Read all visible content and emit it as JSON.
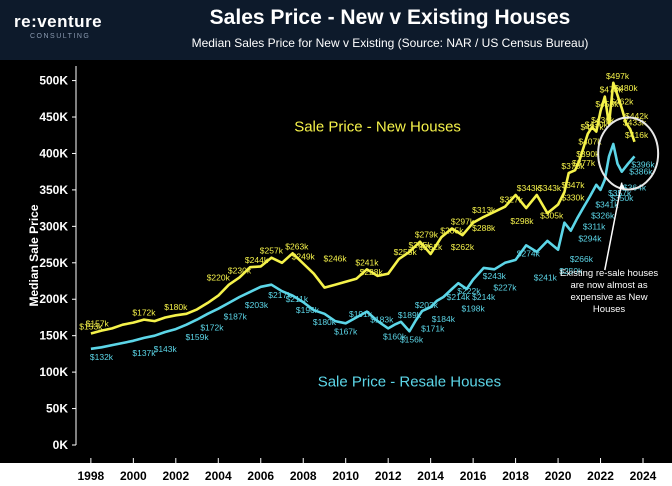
{
  "header": {
    "logo": "re:venture",
    "logo_sub": "CONSULTING",
    "title": "Sales Price - New v Existing Houses",
    "subtitle": "Median Sales Price for New v Existing (Source: NAR / US Census Bureau)"
  },
  "colors": {
    "background": "#000000",
    "header_bg": "#0d1a2b",
    "new_series": "#f5f24a",
    "resale_series": "#5cd6e8",
    "text": "#ffffff"
  },
  "chart_data": {
    "type": "line",
    "ylabel": "Median Sale Price",
    "xlim": [
      1997.3,
      2024.8
    ],
    "ylim": [
      0,
      520000
    ],
    "y_ticks": [
      {
        "value": 0,
        "label": "0K"
      },
      {
        "value": 50000,
        "label": "50K"
      },
      {
        "value": 100000,
        "label": "100K"
      },
      {
        "value": 150000,
        "label": "150K"
      },
      {
        "value": 200000,
        "label": "200K"
      },
      {
        "value": 250000,
        "label": "250K"
      },
      {
        "value": 300000,
        "label": "300K"
      },
      {
        "value": 350000,
        "label": "350K"
      },
      {
        "value": 400000,
        "label": "400K"
      },
      {
        "value": 450000,
        "label": "450K"
      },
      {
        "value": 500000,
        "label": "500K"
      }
    ],
    "x_ticks": [
      "1998",
      "2000",
      "2002",
      "2004",
      "2006",
      "2008",
      "2010",
      "2012",
      "2014",
      "2016",
      "2018",
      "2020",
      "2022",
      "2024"
    ],
    "grid": false,
    "series": [
      {
        "name": "Sale Price - New Houses",
        "color": "#f5f24a",
        "points": [
          [
            1998.0,
            153000
          ],
          [
            1998.5,
            157000
          ],
          [
            1999.0,
            160000
          ],
          [
            1999.5,
            165000
          ],
          [
            2000.0,
            168000
          ],
          [
            2000.5,
            172000
          ],
          [
            2001.0,
            170000
          ],
          [
            2001.5,
            175000
          ],
          [
            2002.0,
            178000
          ],
          [
            2002.5,
            180000
          ],
          [
            2003.0,
            186000
          ],
          [
            2003.5,
            195000
          ],
          [
            2004.0,
            205000
          ],
          [
            2004.5,
            220000
          ],
          [
            2005.0,
            230000
          ],
          [
            2005.5,
            244000
          ],
          [
            2006.0,
            245000
          ],
          [
            2006.5,
            257000
          ],
          [
            2007.0,
            250000
          ],
          [
            2007.5,
            263000
          ],
          [
            2008.0,
            249000
          ],
          [
            2008.5,
            235000
          ],
          [
            2009.0,
            216000
          ],
          [
            2009.5,
            220000
          ],
          [
            2010.0,
            224000
          ],
          [
            2010.5,
            228000
          ],
          [
            2011.0,
            241000
          ],
          [
            2011.5,
            232000
          ],
          [
            2012.0,
            235000
          ],
          [
            2012.5,
            255000
          ],
          [
            2013.0,
            265000
          ],
          [
            2013.5,
            279000
          ],
          [
            2014.0,
            262000
          ],
          [
            2014.5,
            285000
          ],
          [
            2015.0,
            297000
          ],
          [
            2015.5,
            288000
          ],
          [
            2016.0,
            305000
          ],
          [
            2016.5,
            313000
          ],
          [
            2017.0,
            320000
          ],
          [
            2017.5,
            327000
          ],
          [
            2018.0,
            343000
          ],
          [
            2018.5,
            325000
          ],
          [
            2019.0,
            343000
          ],
          [
            2019.5,
            318000
          ],
          [
            2020.0,
            330000
          ],
          [
            2020.3,
            347000
          ],
          [
            2020.5,
            373000
          ],
          [
            2020.8,
            377000
          ],
          [
            2021.0,
            390000
          ],
          [
            2021.2,
            408000
          ],
          [
            2021.4,
            427000
          ],
          [
            2021.6,
            436000
          ],
          [
            2021.8,
            430000
          ],
          [
            2022.0,
            458000
          ],
          [
            2022.2,
            478000
          ],
          [
            2022.4,
            440000
          ],
          [
            2022.6,
            497000
          ],
          [
            2022.8,
            480000
          ],
          [
            2023.0,
            462000
          ],
          [
            2023.2,
            442000
          ],
          [
            2023.4,
            433000
          ],
          [
            2023.6,
            416000
          ]
        ]
      },
      {
        "name": "Sale Price - Resale Houses",
        "color": "#5cd6e8",
        "points": [
          [
            1998.0,
            132000
          ],
          [
            1998.5,
            134000
          ],
          [
            1999.0,
            137000
          ],
          [
            1999.5,
            140000
          ],
          [
            2000.0,
            143000
          ],
          [
            2000.5,
            147000
          ],
          [
            2001.0,
            150000
          ],
          [
            2001.5,
            155000
          ],
          [
            2002.0,
            159000
          ],
          [
            2002.5,
            165000
          ],
          [
            2003.0,
            172000
          ],
          [
            2003.5,
            180000
          ],
          [
            2004.0,
            187000
          ],
          [
            2004.5,
            195000
          ],
          [
            2005.0,
            203000
          ],
          [
            2005.5,
            210000
          ],
          [
            2006.0,
            217000
          ],
          [
            2006.5,
            220000
          ],
          [
            2007.0,
            211000
          ],
          [
            2007.5,
            205000
          ],
          [
            2008.0,
            196000
          ],
          [
            2008.5,
            185000
          ],
          [
            2009.0,
            180000
          ],
          [
            2009.5,
            170000
          ],
          [
            2010.0,
            167000
          ],
          [
            2010.5,
            175000
          ],
          [
            2011.0,
            183000
          ],
          [
            2011.5,
            170000
          ],
          [
            2012.0,
            160000
          ],
          [
            2012.3,
            165000
          ],
          [
            2012.6,
            169000
          ],
          [
            2013.0,
            156000
          ],
          [
            2013.3,
            171000
          ],
          [
            2013.6,
            184000
          ],
          [
            2014.0,
            189000
          ],
          [
            2014.3,
            198000
          ],
          [
            2014.6,
            203000
          ],
          [
            2015.0,
            214000
          ],
          [
            2015.3,
            222000
          ],
          [
            2015.7,
            214000
          ],
          [
            2016.0,
            227000
          ],
          [
            2016.5,
            243000
          ],
          [
            2017.0,
            241000
          ],
          [
            2017.5,
            250000
          ],
          [
            2018.0,
            254000
          ],
          [
            2018.5,
            274000
          ],
          [
            2019.0,
            265000
          ],
          [
            2019.5,
            280000
          ],
          [
            2020.0,
            268000
          ],
          [
            2020.3,
            305000
          ],
          [
            2020.6,
            294000
          ],
          [
            2020.9,
            311000
          ],
          [
            2021.2,
            326000
          ],
          [
            2021.5,
            341000
          ],
          [
            2021.8,
            357000
          ],
          [
            2022.0,
            350000
          ],
          [
            2022.2,
            364000
          ],
          [
            2022.4,
            396000
          ],
          [
            2022.6,
            413000
          ],
          [
            2022.8,
            386000
          ],
          [
            2023.0,
            375000
          ],
          [
            2023.3,
            386000
          ],
          [
            2023.6,
            396000
          ]
        ]
      }
    ],
    "data_labels_new": [
      [
        1998.0,
        153000,
        "$153k"
      ],
      [
        1998.3,
        157000,
        "$157k"
      ],
      [
        2000.5,
        172000,
        "$172k"
      ],
      [
        2002.0,
        180000,
        "$180k"
      ],
      [
        2004.0,
        220000,
        "$220k"
      ],
      [
        2005.0,
        230000,
        "$230k"
      ],
      [
        2005.8,
        244000,
        "$244k"
      ],
      [
        2006.5,
        257000,
        "$257k"
      ],
      [
        2007.7,
        263000,
        "$263k"
      ],
      [
        2008.0,
        249000,
        "$249k"
      ],
      [
        2009.5,
        246000,
        "$246k"
      ],
      [
        2011.0,
        241000,
        "$241k"
      ],
      [
        2011.2,
        228000,
        "$228k"
      ],
      [
        2012.8,
        255000,
        "$255k"
      ],
      [
        2013.5,
        265000,
        "$265k"
      ],
      [
        2013.8,
        279000,
        "$279k"
      ],
      [
        2014.0,
        262000,
        "$262k"
      ],
      [
        2015.0,
        285000,
        "$285k"
      ],
      [
        2015.5,
        297000,
        "$297k"
      ],
      [
        2015.5,
        262000,
        "$262k"
      ],
      [
        2016.5,
        313000,
        "$313k"
      ],
      [
        2016.5,
        288000,
        "$288k"
      ],
      [
        2017.8,
        327000,
        "$327k"
      ],
      [
        2018.3,
        298000,
        "$298k"
      ],
      [
        2018.6,
        343000,
        "$343k"
      ],
      [
        2019.6,
        343000,
        "$343k"
      ],
      [
        2019.7,
        305000,
        "$305k"
      ],
      [
        2020.7,
        330000,
        "$330k"
      ],
      [
        2020.7,
        347000,
        "$347k"
      ],
      [
        2020.7,
        373000,
        "$373k"
      ],
      [
        2021.2,
        377000,
        "$377k"
      ],
      [
        2021.4,
        390000,
        "$390k"
      ],
      [
        2021.5,
        407000,
        "$407k"
      ],
      [
        2021.6,
        427000,
        "$427k"
      ],
      [
        2021.8,
        430000,
        "$430k"
      ],
      [
        2022.1,
        436000,
        "$436k"
      ],
      [
        2022.3,
        458000,
        "$458k"
      ],
      [
        2022.5,
        478000,
        "$478k"
      ],
      [
        2022.8,
        497000,
        "$497k"
      ],
      [
        2023.2,
        480000,
        "$480k"
      ],
      [
        2023.0,
        462000,
        "$462k"
      ],
      [
        2023.7,
        442000,
        "$442k"
      ],
      [
        2023.6,
        433000,
        "$433k"
      ],
      [
        2023.7,
        416000,
        "$416k"
      ]
    ],
    "data_labels_resale": [
      [
        1998.5,
        132000,
        "$132k"
      ],
      [
        2000.5,
        137000,
        "$137k"
      ],
      [
        2001.5,
        143000,
        "$143k"
      ],
      [
        2003.0,
        159000,
        "$159k"
      ],
      [
        2003.7,
        172000,
        "$172k"
      ],
      [
        2004.8,
        187000,
        "$187k"
      ],
      [
        2005.8,
        203000,
        "$203k"
      ],
      [
        2006.9,
        217000,
        "$217k"
      ],
      [
        2007.7,
        211000,
        "$211k"
      ],
      [
        2008.2,
        196000,
        "$196k"
      ],
      [
        2009.0,
        180000,
        "$180k"
      ],
      [
        2010.0,
        167000,
        "$167k"
      ],
      [
        2010.7,
        191000,
        "$191k"
      ],
      [
        2011.7,
        183000,
        "$183k"
      ],
      [
        2012.3,
        160000,
        "$160k"
      ],
      [
        2013.0,
        189000,
        "$189k"
      ],
      [
        2013.1,
        156000,
        "$156k"
      ],
      [
        2013.8,
        203000,
        "$203k"
      ],
      [
        2014.1,
        171000,
        "$171k"
      ],
      [
        2014.6,
        184000,
        "$184k"
      ],
      [
        2015.3,
        214000,
        "$214k"
      ],
      [
        2015.8,
        222000,
        "$222k"
      ],
      [
        2016.0,
        198000,
        "$198k"
      ],
      [
        2016.5,
        214000,
        "$214k"
      ],
      [
        2017.0,
        243000,
        "$243k"
      ],
      [
        2017.5,
        227000,
        "$227k"
      ],
      [
        2018.6,
        274000,
        "$274k"
      ],
      [
        2019.4,
        241000,
        "$241k"
      ],
      [
        2020.6,
        250000,
        "$250k"
      ],
      [
        2021.1,
        266000,
        "$266k"
      ],
      [
        2021.5,
        294000,
        "$294k"
      ],
      [
        2021.7,
        311000,
        "$311k"
      ],
      [
        2022.1,
        326000,
        "$326k"
      ],
      [
        2022.3,
        341000,
        "$341k"
      ],
      [
        2022.9,
        357000,
        "$357k"
      ],
      [
        2023.0,
        350000,
        "$350k"
      ],
      [
        2023.6,
        364000,
        "$364k"
      ],
      [
        2023.9,
        386000,
        "$386k"
      ],
      [
        2024.0,
        396000,
        "$396k"
      ]
    ],
    "annotations": [
      {
        "text": "Sale Price - New Houses",
        "x": 2011.5,
        "y": 430000,
        "color": "#f5f24a"
      },
      {
        "text": "Sale Price - Resale Houses",
        "x": 2013.0,
        "y": 80000,
        "color": "#5cd6e8"
      },
      {
        "text_lines": [
          "Existing re-sale houses",
          "are now almost as",
          "expensive as New",
          "Houses"
        ],
        "x": 2022.4,
        "y": 232000,
        "color": "#ffffff"
      }
    ]
  }
}
